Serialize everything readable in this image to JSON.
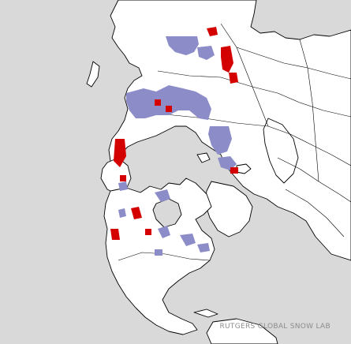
{
  "map": {
    "type": "polar snow and ice cover map",
    "colors": {
      "ocean": "#d9d9d9",
      "land": "#ffffff",
      "border": "#000000",
      "snow": "#8c8cc8",
      "new_snow": "#d40000"
    }
  },
  "credit": "RUTGERS GLOBAL SNOW LAB"
}
